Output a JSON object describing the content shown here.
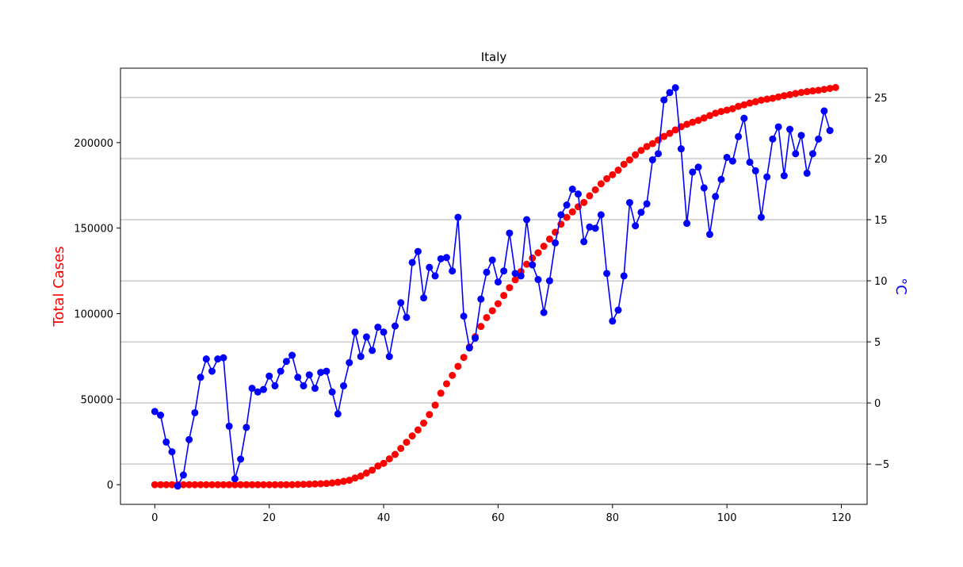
{
  "chart_data": {
    "type": "line",
    "title": "Italy",
    "xlabel": "",
    "ylabel_left": "Total Cases",
    "ylabel_right": "°C",
    "xlim": [
      -6,
      124.5
    ],
    "ylim_left": [
      -11500,
      243500
    ],
    "ylim_right": [
      -8.3,
      27.4
    ],
    "x_ticks": [
      0,
      20,
      40,
      60,
      80,
      100,
      120
    ],
    "y_left_ticks": [
      0,
      50000,
      100000,
      150000,
      200000
    ],
    "y_right_ticks": [
      -5,
      0,
      5,
      10,
      15,
      20,
      25
    ],
    "grid": "right-axis horizontal",
    "colors": {
      "cases": "#ff0000",
      "temperature": "#0000ff",
      "grid": "#b0b0b0"
    },
    "series": [
      {
        "axis": "left",
        "values": [
          0,
          0,
          0,
          0,
          0,
          0,
          0,
          0,
          0,
          0,
          0,
          0,
          0,
          0,
          0,
          0,
          0,
          0,
          0,
          0,
          0,
          0,
          0,
          0,
          0,
          150,
          220,
          300,
          420,
          550,
          700,
          1000,
          1400,
          2000,
          2600,
          3900,
          5000,
          6800,
          8500,
          10900,
          12500,
          15100,
          17700,
          21200,
          24800,
          28500,
          32000,
          36000,
          41000,
          46500,
          53500,
          59000,
          63900,
          69200,
          74400,
          80500,
          86500,
          92500,
          97700,
          101700,
          105800,
          110600,
          115200,
          119800,
          124600,
          128900,
          132500,
          135600,
          139400,
          143600,
          147600,
          152300,
          156300,
          159500,
          162500,
          165000,
          168900,
          172400,
          175900,
          178900,
          181200,
          183900,
          187300,
          189900,
          192900,
          195400,
          197700,
          199400,
          201500,
          203600,
          205400,
          207400,
          209300,
          210700,
          211900,
          213000,
          214400,
          215800,
          217200,
          218200,
          219000,
          219800,
          221200,
          222100,
          223100,
          223900,
          224800,
          225400,
          225900,
          226700,
          227400,
          228000,
          228700,
          229300,
          229800,
          230200,
          230600,
          231100,
          231700,
          232200
        ]
      },
      {
        "axis": "right",
        "values": [
          -0.7,
          -1.0,
          -3.2,
          -4.0,
          -6.8,
          -5.9,
          -3.0,
          -0.8,
          2.1,
          3.6,
          2.6,
          3.6,
          3.7,
          -1.9,
          -6.2,
          -4.6,
          -2.0,
          1.2,
          0.9,
          1.1,
          2.2,
          1.4,
          2.6,
          3.4,
          3.9,
          2.1,
          1.4,
          2.3,
          1.2,
          2.5,
          2.6,
          0.9,
          -0.9,
          1.4,
          3.3,
          5.8,
          3.8,
          5.4,
          4.3,
          6.2,
          5.8,
          3.8,
          6.3,
          8.2,
          7.0,
          11.5,
          12.4,
          8.6,
          11.1,
          10.4,
          11.8,
          11.9,
          10.8,
          15.2,
          7.1,
          4.5,
          5.3,
          8.5,
          10.7,
          11.7,
          9.9,
          10.8,
          13.9,
          10.6,
          10.4,
          15.0,
          11.3,
          10.1,
          7.4,
          10.0,
          13.1,
          15.4,
          16.2,
          17.5,
          17.1,
          13.2,
          14.4,
          14.3,
          15.4,
          10.6,
          6.7,
          7.6,
          10.4,
          16.4,
          14.5,
          15.6,
          16.3,
          19.9,
          20.4,
          24.8,
          25.4,
          25.8,
          20.8,
          14.7,
          18.9,
          19.3,
          17.6,
          13.8,
          16.9,
          18.3,
          20.1,
          19.8,
          21.8,
          23.3,
          19.7,
          19.0,
          15.2,
          18.5,
          21.6,
          22.6,
          18.6,
          22.4,
          20.4,
          21.9,
          18.8,
          20.4,
          21.6,
          23.9,
          22.3
        ]
      }
    ]
  }
}
